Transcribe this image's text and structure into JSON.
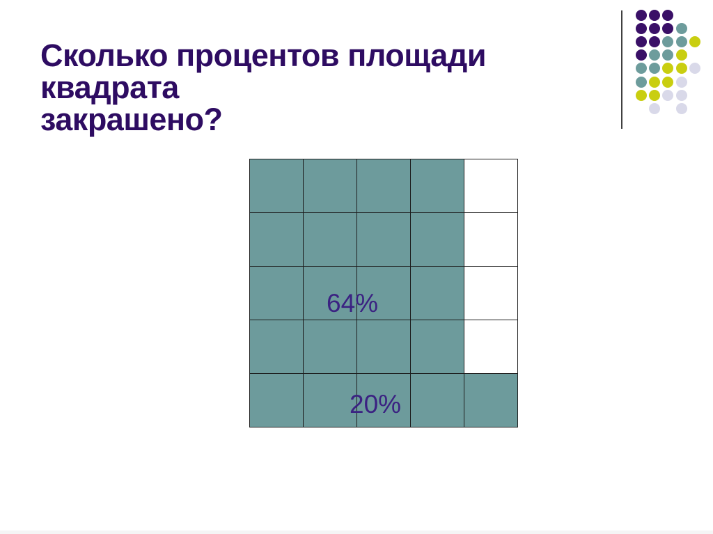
{
  "title": {
    "lines": [
      "Сколько процентов площади квадрата",
      "закрашено?"
    ],
    "full_text": "Сколько процентов площади квадрата закрашено?",
    "color": "#2e0c62"
  },
  "square_grid": {
    "rows": 5,
    "cols": 5,
    "shaded": [
      [
        1,
        1,
        1,
        1,
        0
      ],
      [
        1,
        1,
        1,
        1,
        0
      ],
      [
        1,
        1,
        1,
        1,
        0
      ],
      [
        1,
        1,
        1,
        1,
        0
      ],
      [
        1,
        1,
        1,
        1,
        1
      ]
    ],
    "fill_color": "#6d9b9c",
    "line_color": "#1d1d1d",
    "label_color": "#3b2282",
    "labels": [
      {
        "text": "64%"
      },
      {
        "text": "20%"
      }
    ]
  },
  "decoration": {
    "rule_color": "#404040",
    "palette": {
      "purple": "#3a1067",
      "teal": "#6d9c9c",
      "yellow": "#c9ce10",
      "lavender": "#d9d9e9"
    },
    "dots": [
      {
        "row": 1,
        "col": 1,
        "color": "purple"
      },
      {
        "row": 1,
        "col": 2,
        "color": "purple"
      },
      {
        "row": 1,
        "col": 3,
        "color": "purple"
      },
      {
        "row": 2,
        "col": 1,
        "color": "purple"
      },
      {
        "row": 2,
        "col": 2,
        "color": "purple"
      },
      {
        "row": 2,
        "col": 3,
        "color": "purple"
      },
      {
        "row": 2,
        "col": 4,
        "color": "teal"
      },
      {
        "row": 3,
        "col": 1,
        "color": "purple"
      },
      {
        "row": 3,
        "col": 2,
        "color": "purple"
      },
      {
        "row": 3,
        "col": 3,
        "color": "teal"
      },
      {
        "row": 3,
        "col": 4,
        "color": "teal"
      },
      {
        "row": 3,
        "col": 5,
        "color": "yellow"
      },
      {
        "row": 4,
        "col": 1,
        "color": "purple"
      },
      {
        "row": 4,
        "col": 2,
        "color": "teal"
      },
      {
        "row": 4,
        "col": 3,
        "color": "teal"
      },
      {
        "row": 4,
        "col": 4,
        "color": "yellow"
      },
      {
        "row": 5,
        "col": 1,
        "color": "teal"
      },
      {
        "row": 5,
        "col": 2,
        "color": "teal"
      },
      {
        "row": 5,
        "col": 3,
        "color": "yellow"
      },
      {
        "row": 5,
        "col": 4,
        "color": "yellow"
      },
      {
        "row": 5,
        "col": 5,
        "color": "lavender"
      },
      {
        "row": 6,
        "col": 1,
        "color": "teal"
      },
      {
        "row": 6,
        "col": 2,
        "color": "yellow"
      },
      {
        "row": 6,
        "col": 3,
        "color": "yellow"
      },
      {
        "row": 6,
        "col": 4,
        "color": "lavender"
      },
      {
        "row": 7,
        "col": 1,
        "color": "yellow"
      },
      {
        "row": 7,
        "col": 2,
        "color": "yellow"
      },
      {
        "row": 7,
        "col": 3,
        "color": "lavender"
      },
      {
        "row": 7,
        "col": 4,
        "color": "lavender"
      },
      {
        "row": 8,
        "col": 2,
        "color": "lavender"
      },
      {
        "row": 8,
        "col": 4,
        "color": "lavender"
      }
    ]
  }
}
